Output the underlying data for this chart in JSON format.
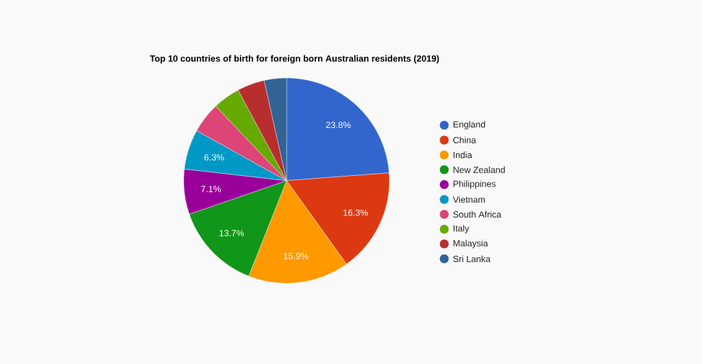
{
  "chart_data": {
    "type": "pie",
    "title": "Top 10 countries of birth for foreign born Australian residents (2019)",
    "categories": [
      "England",
      "China",
      "India",
      "New Zealand",
      "Philippines",
      "Vietnam",
      "South Africa",
      "Italy",
      "Malaysia",
      "Sri Lanka"
    ],
    "values": [
      23.8,
      16.3,
      15.9,
      13.7,
      7.1,
      6.3,
      4.8,
      4.3,
      4.3,
      3.5
    ],
    "value_labels": [
      "23.8%",
      "16.3%",
      "15.9%",
      "13.7%",
      "7.1%",
      "6.3%",
      null,
      null,
      null,
      null
    ],
    "colors": [
      "#3366cc",
      "#dc3912",
      "#ff9900",
      "#109618",
      "#990099",
      "#0099c6",
      "#dd4477",
      "#66aa00",
      "#b82e2e",
      "#316395"
    ],
    "legend": "right"
  }
}
